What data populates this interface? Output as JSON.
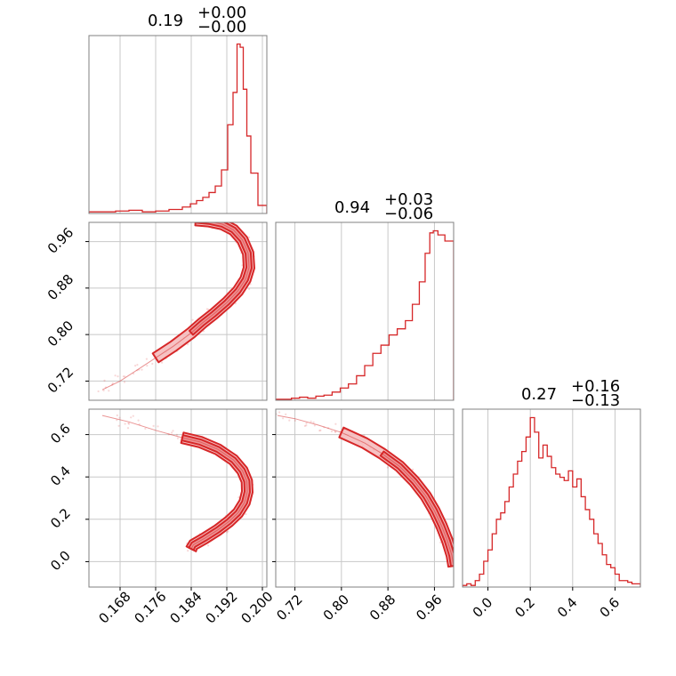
{
  "colors": {
    "accent": "#d62728",
    "accent_fill": "#f4b7b8",
    "grid": "#c8c8c8",
    "frame": "#808080"
  },
  "chart_data": {
    "type": "corner",
    "parameters": [
      {
        "title_value": "0.19",
        "title_plus": "+0.00",
        "title_minus": "−0.00",
        "range": [
          0.161,
          0.201
        ],
        "ticks": [
          0.168,
          0.176,
          0.184,
          0.192,
          0.2
        ],
        "tick_labels": [
          "0.168",
          "0.176",
          "0.184",
          "0.192",
          "0.200"
        ]
      },
      {
        "title_value": "0.94",
        "title_plus": "+0.03",
        "title_minus": "−0.06",
        "range": [
          0.687,
          0.993
        ],
        "ticks": [
          0.72,
          0.8,
          0.88,
          0.96
        ],
        "tick_labels": [
          "0.72",
          "0.80",
          "0.88",
          "0.96"
        ]
      },
      {
        "title_value": "0.27",
        "title_plus": "+0.16",
        "title_minus": "−0.13",
        "range": [
          -0.12,
          0.72
        ],
        "ticks": [
          0.0,
          0.2,
          0.4,
          0.6
        ],
        "tick_labels": [
          "0.0",
          "0.2",
          "0.4",
          "0.6"
        ]
      }
    ],
    "histograms": [
      {
        "param": 0,
        "edges": [
          0.161,
          0.164,
          0.167,
          0.17,
          0.173,
          0.176,
          0.179,
          0.182,
          0.1838,
          0.1852,
          0.1866,
          0.188,
          0.1894,
          0.1908,
          0.1922,
          0.1934,
          0.1943,
          0.195,
          0.1957,
          0.1965,
          0.1974,
          0.199,
          0.201
        ],
        "counts": [
          1,
          1,
          1.5,
          2,
          1,
          1.5,
          2.5,
          4,
          6,
          8,
          10,
          13,
          17,
          27,
          55,
          75,
          105,
          103,
          77,
          48,
          25,
          5
        ]
      },
      {
        "param": 1,
        "edges": [
          0.687,
          0.7,
          0.714,
          0.728,
          0.742,
          0.756,
          0.77,
          0.784,
          0.798,
          0.812,
          0.826,
          0.84,
          0.854,
          0.868,
          0.882,
          0.896,
          0.91,
          0.922,
          0.934,
          0.944,
          0.952,
          0.958,
          0.966,
          0.978,
          0.993
        ],
        "counts": [
          0.5,
          0.5,
          1,
          1.5,
          1,
          2,
          2.5,
          4,
          6,
          8,
          12,
          17,
          23,
          27,
          32,
          35,
          39,
          47,
          58,
          72,
          82,
          83,
          81,
          78
        ]
      },
      {
        "param": 2,
        "edges": [
          -0.12,
          -0.1,
          -0.08,
          -0.06,
          -0.04,
          -0.02,
          0.0,
          0.02,
          0.04,
          0.06,
          0.08,
          0.1,
          0.12,
          0.14,
          0.16,
          0.18,
          0.2,
          0.22,
          0.24,
          0.26,
          0.28,
          0.3,
          0.32,
          0.34,
          0.36,
          0.38,
          0.4,
          0.42,
          0.44,
          0.46,
          0.48,
          0.5,
          0.52,
          0.54,
          0.56,
          0.58,
          0.6,
          0.62,
          0.64,
          0.66,
          0.68,
          0.7,
          0.72
        ],
        "counts": [
          1,
          2,
          1,
          4,
          8,
          16,
          23,
          33,
          42,
          46,
          53,
          62,
          70,
          78,
          84,
          93,
          105,
          96,
          80,
          88,
          81,
          74,
          70,
          68,
          66,
          72,
          62,
          67,
          56,
          48,
          42,
          33,
          27,
          20,
          14,
          12,
          8,
          4,
          4,
          3,
          2,
          2
        ]
      }
    ],
    "joint": [
      {
        "x_param": 0,
        "y_param": 1,
        "ridge": [
          [
            0.185,
            0.997
          ],
          [
            0.188,
            0.995
          ],
          [
            0.191,
            0.99
          ],
          [
            0.1935,
            0.98
          ],
          [
            0.1955,
            0.963
          ],
          [
            0.1968,
            0.94
          ],
          [
            0.197,
            0.915
          ],
          [
            0.1962,
            0.895
          ],
          [
            0.1945,
            0.875
          ],
          [
            0.192,
            0.855
          ],
          [
            0.189,
            0.835
          ],
          [
            0.1865,
            0.82
          ],
          [
            0.184,
            0.803
          ],
          [
            0.18,
            0.78
          ],
          [
            0.176,
            0.76
          ],
          [
            0.172,
            0.74
          ],
          [
            0.168,
            0.72
          ],
          [
            0.164,
            0.705
          ]
        ],
        "core_range": [
          0,
          12
        ],
        "mid_range": [
          0,
          14
        ]
      },
      {
        "x_param": 0,
        "y_param": 2,
        "ridge": [
          [
            0.164,
            0.69
          ],
          [
            0.17,
            0.66
          ],
          [
            0.176,
            0.62
          ],
          [
            0.182,
            0.585
          ],
          [
            0.186,
            0.565
          ],
          [
            0.19,
            0.53
          ],
          [
            0.1935,
            0.48
          ],
          [
            0.1955,
            0.43
          ],
          [
            0.1965,
            0.38
          ],
          [
            0.1966,
            0.33
          ],
          [
            0.196,
            0.28
          ],
          [
            0.1945,
            0.23
          ],
          [
            0.1925,
            0.19
          ],
          [
            0.19,
            0.15
          ],
          [
            0.187,
            0.11
          ],
          [
            0.1845,
            0.08
          ],
          [
            0.184,
            0.06
          ]
        ],
        "core_range": [
          3,
          16
        ],
        "mid_range": [
          3,
          16
        ]
      },
      {
        "x_param": 1,
        "y_param": 2,
        "ridge": [
          [
            0.69,
            0.69
          ],
          [
            0.72,
            0.675
          ],
          [
            0.76,
            0.645
          ],
          [
            0.8,
            0.61
          ],
          [
            0.84,
            0.56
          ],
          [
            0.87,
            0.51
          ],
          [
            0.9,
            0.45
          ],
          [
            0.925,
            0.38
          ],
          [
            0.945,
            0.31
          ],
          [
            0.96,
            0.24
          ],
          [
            0.972,
            0.17
          ],
          [
            0.982,
            0.1
          ],
          [
            0.99,
            0.03
          ],
          [
            0.993,
            -0.02
          ]
        ],
        "core_range": [
          5,
          13
        ],
        "mid_range": [
          3,
          13
        ]
      }
    ]
  }
}
